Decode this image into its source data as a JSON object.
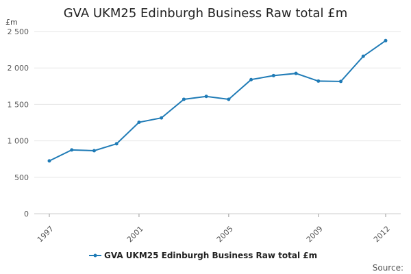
{
  "chart_data": {
    "type": "line",
    "title": "GVA UKM25 Edinburgh Business Raw total £m",
    "ylabel": "£m",
    "xlabel": "",
    "ylim": [
      0,
      2500
    ],
    "yticks": [
      0,
      500,
      1000,
      1500,
      2000,
      2500
    ],
    "ytick_labels": [
      "0",
      "500",
      "1 000",
      "1 500",
      "2 000",
      "2 500"
    ],
    "x": [
      1997,
      1998,
      1999,
      2000,
      2001,
      2002,
      2003,
      2004,
      2005,
      2006,
      2007,
      2008,
      2009,
      2010,
      2011,
      2012
    ],
    "xtick_labels": [
      "1997",
      "2001",
      "2005",
      "2009",
      "2012"
    ],
    "grid": true,
    "legend_position": "bottom",
    "series": [
      {
        "name": "GVA UKM25 Edinburgh Business Raw total £m",
        "color": "#1f7bb6",
        "values": [
          725,
          875,
          865,
          960,
          1255,
          1315,
          1570,
          1610,
          1570,
          1840,
          1895,
          1925,
          1820,
          1815,
          2160,
          2375
        ]
      }
    ]
  },
  "footer": {
    "source_label": "Source:"
  }
}
